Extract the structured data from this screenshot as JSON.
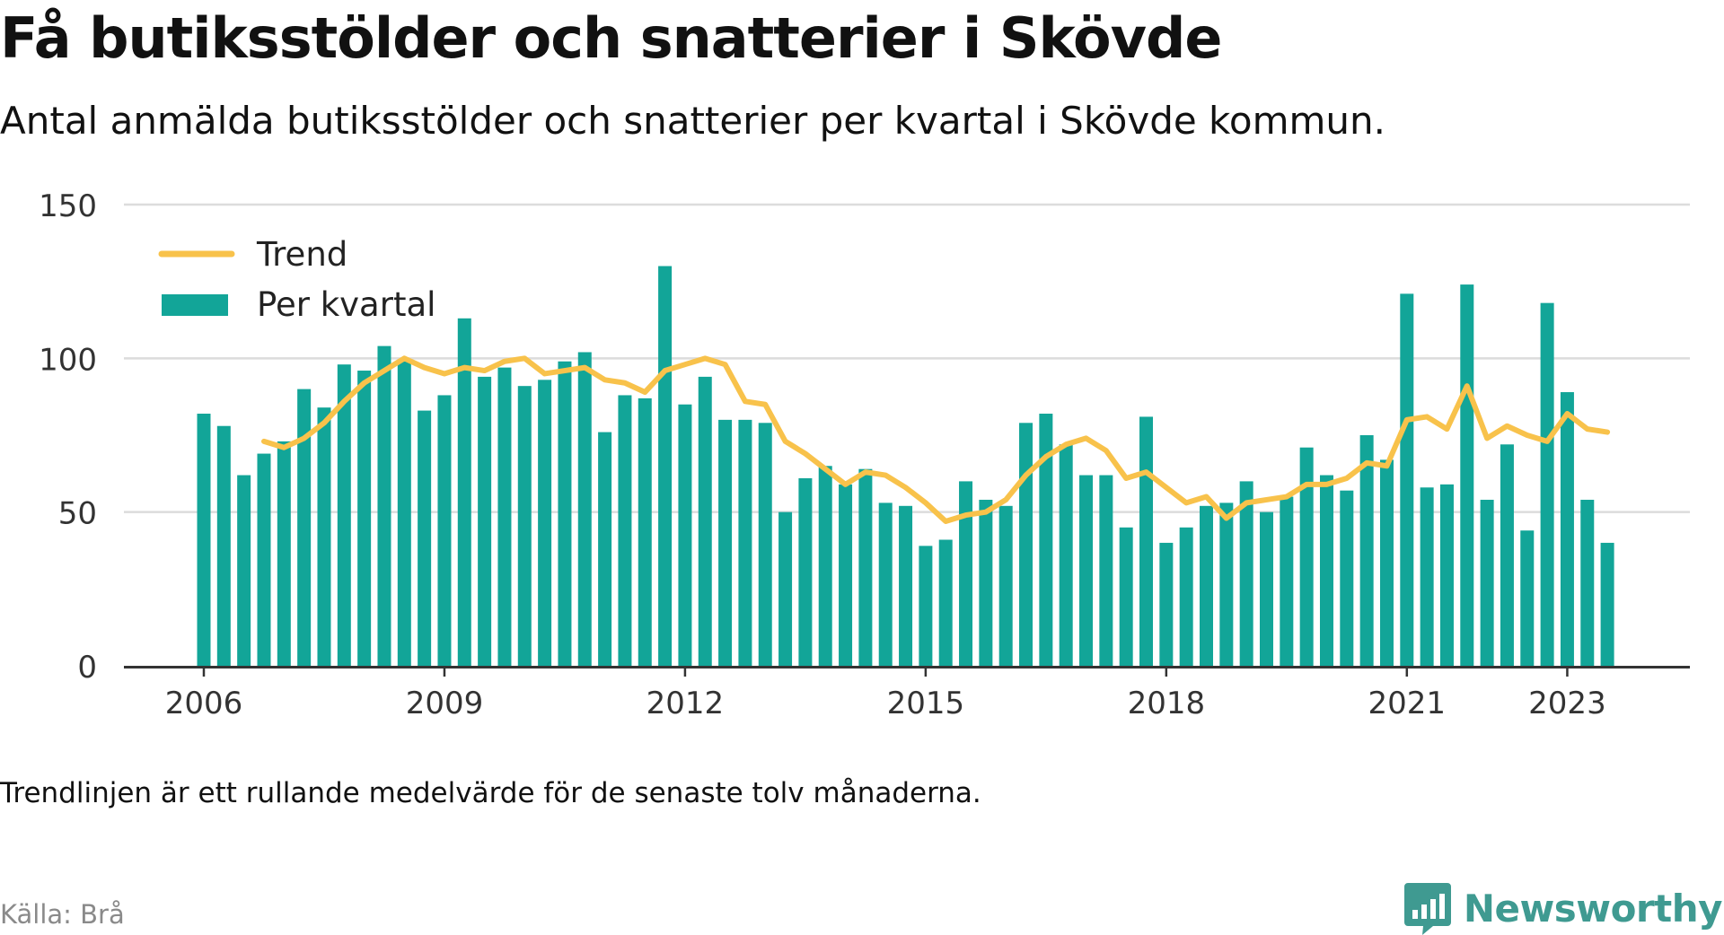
{
  "header": {
    "title": "Få butiksstölder och snatterier i Skövde",
    "subtitle": "Antal anmälda butiksstölder och snatterier per kvartal i Skövde kommun."
  },
  "footer": {
    "note": "Trendlinjen är ett rullande medelvärde för de senaste tolv månaderna.",
    "source": "Källa: Brå",
    "brand": "Newsworthy",
    "brand_icon": "bar-chart-speech-bubble-icon"
  },
  "colors": {
    "bar": "#12a598",
    "trend": "#f8c24b",
    "grid": "#dcdcdc",
    "axis": "#333333",
    "brand": "#3f9a91"
  },
  "chart_data": {
    "type": "bar",
    "x_unit": "quarter",
    "x_start": "2006 Q1",
    "x_ticks": [
      "2006",
      "2009",
      "2012",
      "2015",
      "2018",
      "2021",
      "2023"
    ],
    "y_ticks": [
      0,
      50,
      100,
      150
    ],
    "ylim": [
      0,
      150
    ],
    "grid": true,
    "legend": {
      "placement": "top-left",
      "entries": [
        "Trend",
        "Per kvartal"
      ]
    },
    "series": [
      {
        "name": "Per kvartal",
        "kind": "bar",
        "values": [
          82,
          78,
          62,
          69,
          73,
          90,
          84,
          98,
          96,
          104,
          99,
          83,
          88,
          113,
          94,
          97,
          91,
          93,
          99,
          102,
          76,
          88,
          87,
          130,
          85,
          94,
          80,
          80,
          79,
          50,
          61,
          65,
          59,
          64,
          53,
          52,
          39,
          41,
          60,
          54,
          52,
          79,
          82,
          72,
          62,
          62,
          45,
          81,
          40,
          45,
          52,
          53,
          60,
          50,
          55,
          71,
          62,
          57,
          75,
          67,
          121,
          58,
          59,
          124,
          54,
          72,
          44,
          118,
          89,
          54,
          40
        ]
      },
      {
        "name": "Trend",
        "kind": "line",
        "start_index": 3,
        "values": [
          73,
          71,
          74,
          79,
          86,
          92,
          96,
          100,
          97,
          95,
          97,
          96,
          99,
          100,
          95,
          96,
          97,
          93,
          92,
          89,
          96,
          98,
          100,
          98,
          86,
          85,
          73,
          69,
          64,
          59,
          63,
          62,
          58,
          53,
          47,
          49,
          50,
          54,
          62,
          68,
          72,
          74,
          70,
          61,
          63,
          58,
          53,
          55,
          48,
          53,
          54,
          55,
          59,
          59,
          61,
          66,
          65,
          80,
          81,
          77,
          91,
          74,
          78,
          75,
          73,
          82,
          77,
          76
        ]
      }
    ]
  }
}
